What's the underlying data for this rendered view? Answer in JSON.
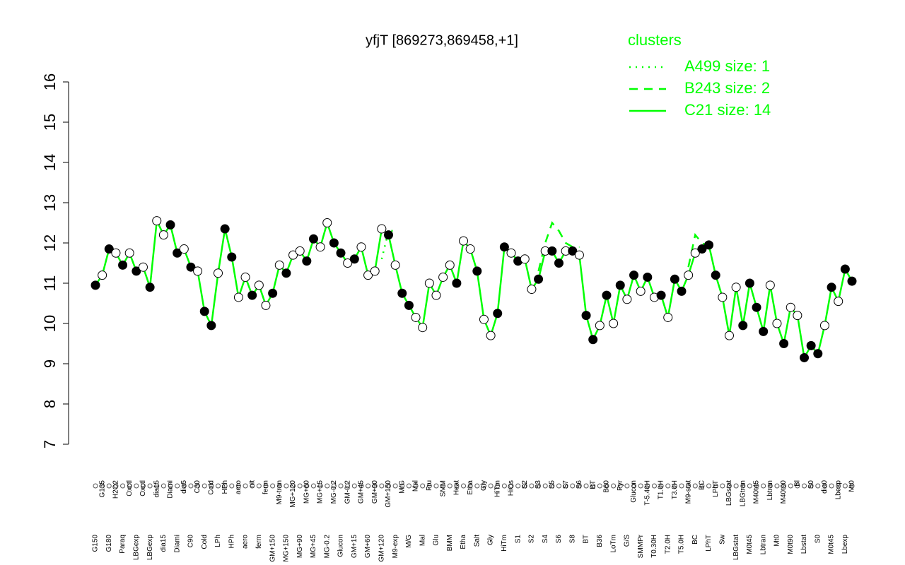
{
  "chart_data": {
    "type": "line",
    "title": "yfjT [869273,869458,+1]",
    "legend_title": "clusters",
    "legend_position": "top-right",
    "ylim": [
      7,
      16
    ],
    "yticks": [
      7,
      8,
      9,
      10,
      11,
      12,
      13,
      14,
      15,
      16
    ],
    "categories": [
      "G150",
      "G135",
      "G180",
      "H2O2",
      "Paraq",
      "Oxctl",
      "LBGexp",
      "Oxctl",
      "LBGexp",
      "dia15",
      "dia15",
      "Diami",
      "Diami",
      "dia5",
      "C90",
      "C30",
      "Cold",
      "Cold",
      "LPh",
      "HPh",
      "HPh",
      "aero",
      "aero",
      "nit",
      "ferm",
      "ferm",
      "GM+150",
      "M9-tran",
      "MG+150",
      "MG+120",
      "MG+90",
      "MG+60",
      "MG+45",
      "MG+15",
      "MG-0.2",
      "MG-0.2",
      "Glucon",
      "GM-0.2",
      "GM+15",
      "GM+45",
      "GM+60",
      "GM+90",
      "GM+120",
      "GM+150",
      "M9-exp",
      "M/G",
      "M/G",
      "Mal",
      "Mal",
      "Fru",
      "Glu",
      "SMM",
      "BMM",
      "Heat",
      "Etha",
      "Etha",
      "Salt",
      "Gly",
      "Gly",
      "HiTm",
      "HiTm",
      "HiOs",
      "S1",
      "S2",
      "S2",
      "S3",
      "S4",
      "S5",
      "S6",
      "S7",
      "S8",
      "S6",
      "BT",
      "BT",
      "B36",
      "B60",
      "LoTm",
      "Pyr",
      "G/S",
      "Glucon",
      "SMMPr",
      "T-5.40H",
      "T0.30H",
      "T1.0H",
      "T2.0H",
      "T3.0H",
      "T5.0H",
      "M9-stat",
      "BC",
      "BC",
      "LPhT",
      "LPhT",
      "Sw",
      "LBGstat",
      "LBGstat",
      "LBGtran",
      "M0t45",
      "M40t45",
      "Lbtran",
      "Lbtran",
      "Mt0",
      "M40t90",
      "M0t90",
      "Bl",
      "Lbstat",
      "S0",
      "S0",
      "dia0",
      "M0t45",
      "Lbexp",
      "Lbexp",
      "Mt0"
    ],
    "points": {
      "values": [
        10.95,
        11.2,
        11.85,
        11.75,
        11.45,
        11.75,
        11.3,
        11.4,
        10.9,
        12.55,
        12.2,
        12.45,
        11.75,
        11.85,
        11.4,
        11.3,
        10.3,
        9.95,
        11.25,
        12.35,
        11.65,
        10.65,
        11.15,
        10.7,
        10.95,
        10.45,
        10.75,
        11.45,
        11.25,
        11.7,
        11.8,
        11.55,
        12.1,
        11.9,
        12.5,
        12.0,
        11.75,
        11.5,
        11.6,
        11.9,
        11.2,
        11.3,
        12.35,
        12.2,
        11.45,
        10.75,
        10.45,
        10.15,
        9.9,
        11.0,
        10.7,
        11.15,
        11.45,
        11.0,
        12.05,
        11.85,
        11.3,
        10.1,
        9.7,
        10.25,
        11.9,
        11.75,
        11.55,
        11.6,
        10.85,
        11.1,
        11.8,
        11.8,
        11.5,
        11.8,
        11.8,
        11.7,
        10.2,
        9.6,
        9.95,
        10.7,
        10.0,
        10.95,
        10.6,
        11.2,
        10.8,
        11.15,
        10.65,
        10.7,
        10.15,
        11.1,
        10.8,
        11.2,
        11.75,
        11.85,
        11.95,
        11.2,
        10.65,
        9.7,
        10.9,
        9.95,
        11.0,
        10.4,
        9.8,
        10.95,
        10.0,
        9.5,
        10.4,
        10.2,
        9.15,
        9.45,
        9.25,
        9.95,
        10.9,
        10.55,
        11.35,
        11.05
      ],
      "fills": [
        "black",
        "white",
        "black",
        "white",
        "black",
        "white",
        "black",
        "white",
        "black",
        "white",
        "white",
        "black",
        "black",
        "white",
        "black",
        "white",
        "black",
        "black",
        "white",
        "black",
        "black",
        "white",
        "white",
        "black",
        "white",
        "white",
        "black",
        "white",
        "black",
        "white",
        "white",
        "black",
        "black",
        "white",
        "white",
        "black",
        "black",
        "white",
        "black",
        "white",
        "white",
        "white",
        "white",
        "black",
        "white",
        "black",
        "black",
        "white",
        "white",
        "white",
        "white",
        "white",
        "white",
        "black",
        "white",
        "white",
        "black",
        "white",
        "white",
        "black",
        "black",
        "white",
        "black",
        "white",
        "white",
        "black",
        "white",
        "black",
        "black",
        "white",
        "black",
        "white",
        "black",
        "black",
        "white",
        "black",
        "white",
        "black",
        "white",
        "black",
        "white",
        "black",
        "white",
        "black",
        "white",
        "black",
        "black",
        "white",
        "white",
        "black",
        "black",
        "black",
        "white",
        "white",
        "white",
        "black",
        "black",
        "black",
        "black",
        "white",
        "white",
        "black",
        "white",
        "white",
        "black",
        "black",
        "black",
        "white",
        "black",
        "white",
        "black",
        "black"
      ]
    },
    "series": [
      {
        "name": "A499 size: 1",
        "color": "#00ff00",
        "dash": "dotted",
        "values": [
          null,
          null,
          null,
          null,
          null,
          null,
          null,
          null,
          null,
          null,
          null,
          null,
          null,
          null,
          null,
          null,
          null,
          null,
          null,
          null,
          null,
          null,
          null,
          null,
          null,
          null,
          null,
          null,
          null,
          null,
          null,
          null,
          null,
          null,
          null,
          null,
          null,
          null,
          null,
          null,
          null,
          null,
          11.6,
          12.3,
          12.3,
          null,
          null,
          null,
          null,
          null,
          null,
          null,
          null,
          null,
          null,
          null,
          null,
          null,
          null,
          null,
          null,
          null,
          null,
          null,
          null,
          null,
          null,
          null,
          null,
          null,
          null,
          null,
          null,
          null,
          null,
          null,
          null,
          null,
          null,
          null,
          null,
          null,
          null,
          null,
          null,
          null,
          null,
          null,
          null,
          null,
          null,
          null,
          null,
          null,
          null,
          null,
          null,
          null,
          null,
          null,
          null,
          null,
          null,
          null,
          null,
          null,
          null,
          null,
          null,
          null,
          null,
          null
        ]
      },
      {
        "name": "B243 size: 2",
        "color": "#00ff00",
        "dash": "dashed",
        "values": [
          null,
          null,
          null,
          null,
          null,
          null,
          null,
          null,
          null,
          null,
          null,
          null,
          null,
          null,
          null,
          null,
          null,
          null,
          null,
          null,
          null,
          null,
          null,
          null,
          null,
          null,
          null,
          null,
          null,
          null,
          null,
          null,
          null,
          null,
          null,
          null,
          null,
          null,
          null,
          null,
          null,
          null,
          null,
          null,
          null,
          null,
          null,
          null,
          null,
          null,
          null,
          null,
          null,
          null,
          null,
          null,
          null,
          null,
          null,
          null,
          null,
          null,
          null,
          null,
          null,
          11.3,
          12.0,
          12.5,
          12.3,
          12.0,
          11.9,
          11.9,
          null,
          null,
          null,
          null,
          null,
          null,
          null,
          null,
          null,
          null,
          null,
          null,
          null,
          null,
          null,
          11.4,
          12.2,
          12.0,
          11.9,
          null,
          null,
          null,
          null,
          null,
          null,
          null,
          null,
          null,
          null,
          null,
          null,
          null,
          null,
          null,
          null,
          null,
          null,
          null,
          null,
          null
        ]
      },
      {
        "name": "C21 size: 14",
        "color": "#00ff00",
        "dash": "solid",
        "values": [
          10.95,
          11.2,
          11.85,
          11.75,
          11.45,
          11.75,
          11.3,
          11.4,
          10.9,
          12.55,
          12.2,
          12.45,
          11.75,
          11.85,
          11.4,
          11.3,
          10.3,
          9.95,
          11.25,
          12.35,
          11.65,
          10.65,
          11.15,
          10.7,
          10.95,
          10.45,
          10.75,
          11.45,
          11.25,
          11.7,
          11.8,
          11.55,
          12.1,
          11.9,
          12.5,
          12.0,
          11.75,
          11.5,
          11.6,
          11.9,
          11.2,
          11.3,
          12.35,
          12.2,
          11.45,
          10.75,
          10.45,
          10.15,
          9.9,
          11.0,
          10.7,
          11.15,
          11.45,
          11.0,
          12.05,
          11.85,
          11.3,
          10.1,
          9.7,
          10.25,
          11.9,
          11.75,
          11.55,
          11.6,
          10.85,
          11.1,
          11.8,
          11.8,
          11.5,
          11.8,
          11.8,
          11.7,
          10.2,
          9.6,
          9.95,
          10.7,
          10.0,
          10.95,
          10.6,
          11.2,
          10.8,
          11.15,
          10.65,
          10.7,
          10.15,
          11.1,
          10.8,
          11.2,
          11.75,
          11.85,
          11.95,
          11.2,
          10.65,
          9.7,
          10.9,
          9.95,
          11.0,
          10.4,
          9.8,
          10.95,
          10.0,
          9.5,
          10.4,
          10.2,
          9.15,
          9.45,
          9.25,
          9.95,
          10.9,
          10.55,
          11.35,
          11.05
        ]
      }
    ]
  }
}
